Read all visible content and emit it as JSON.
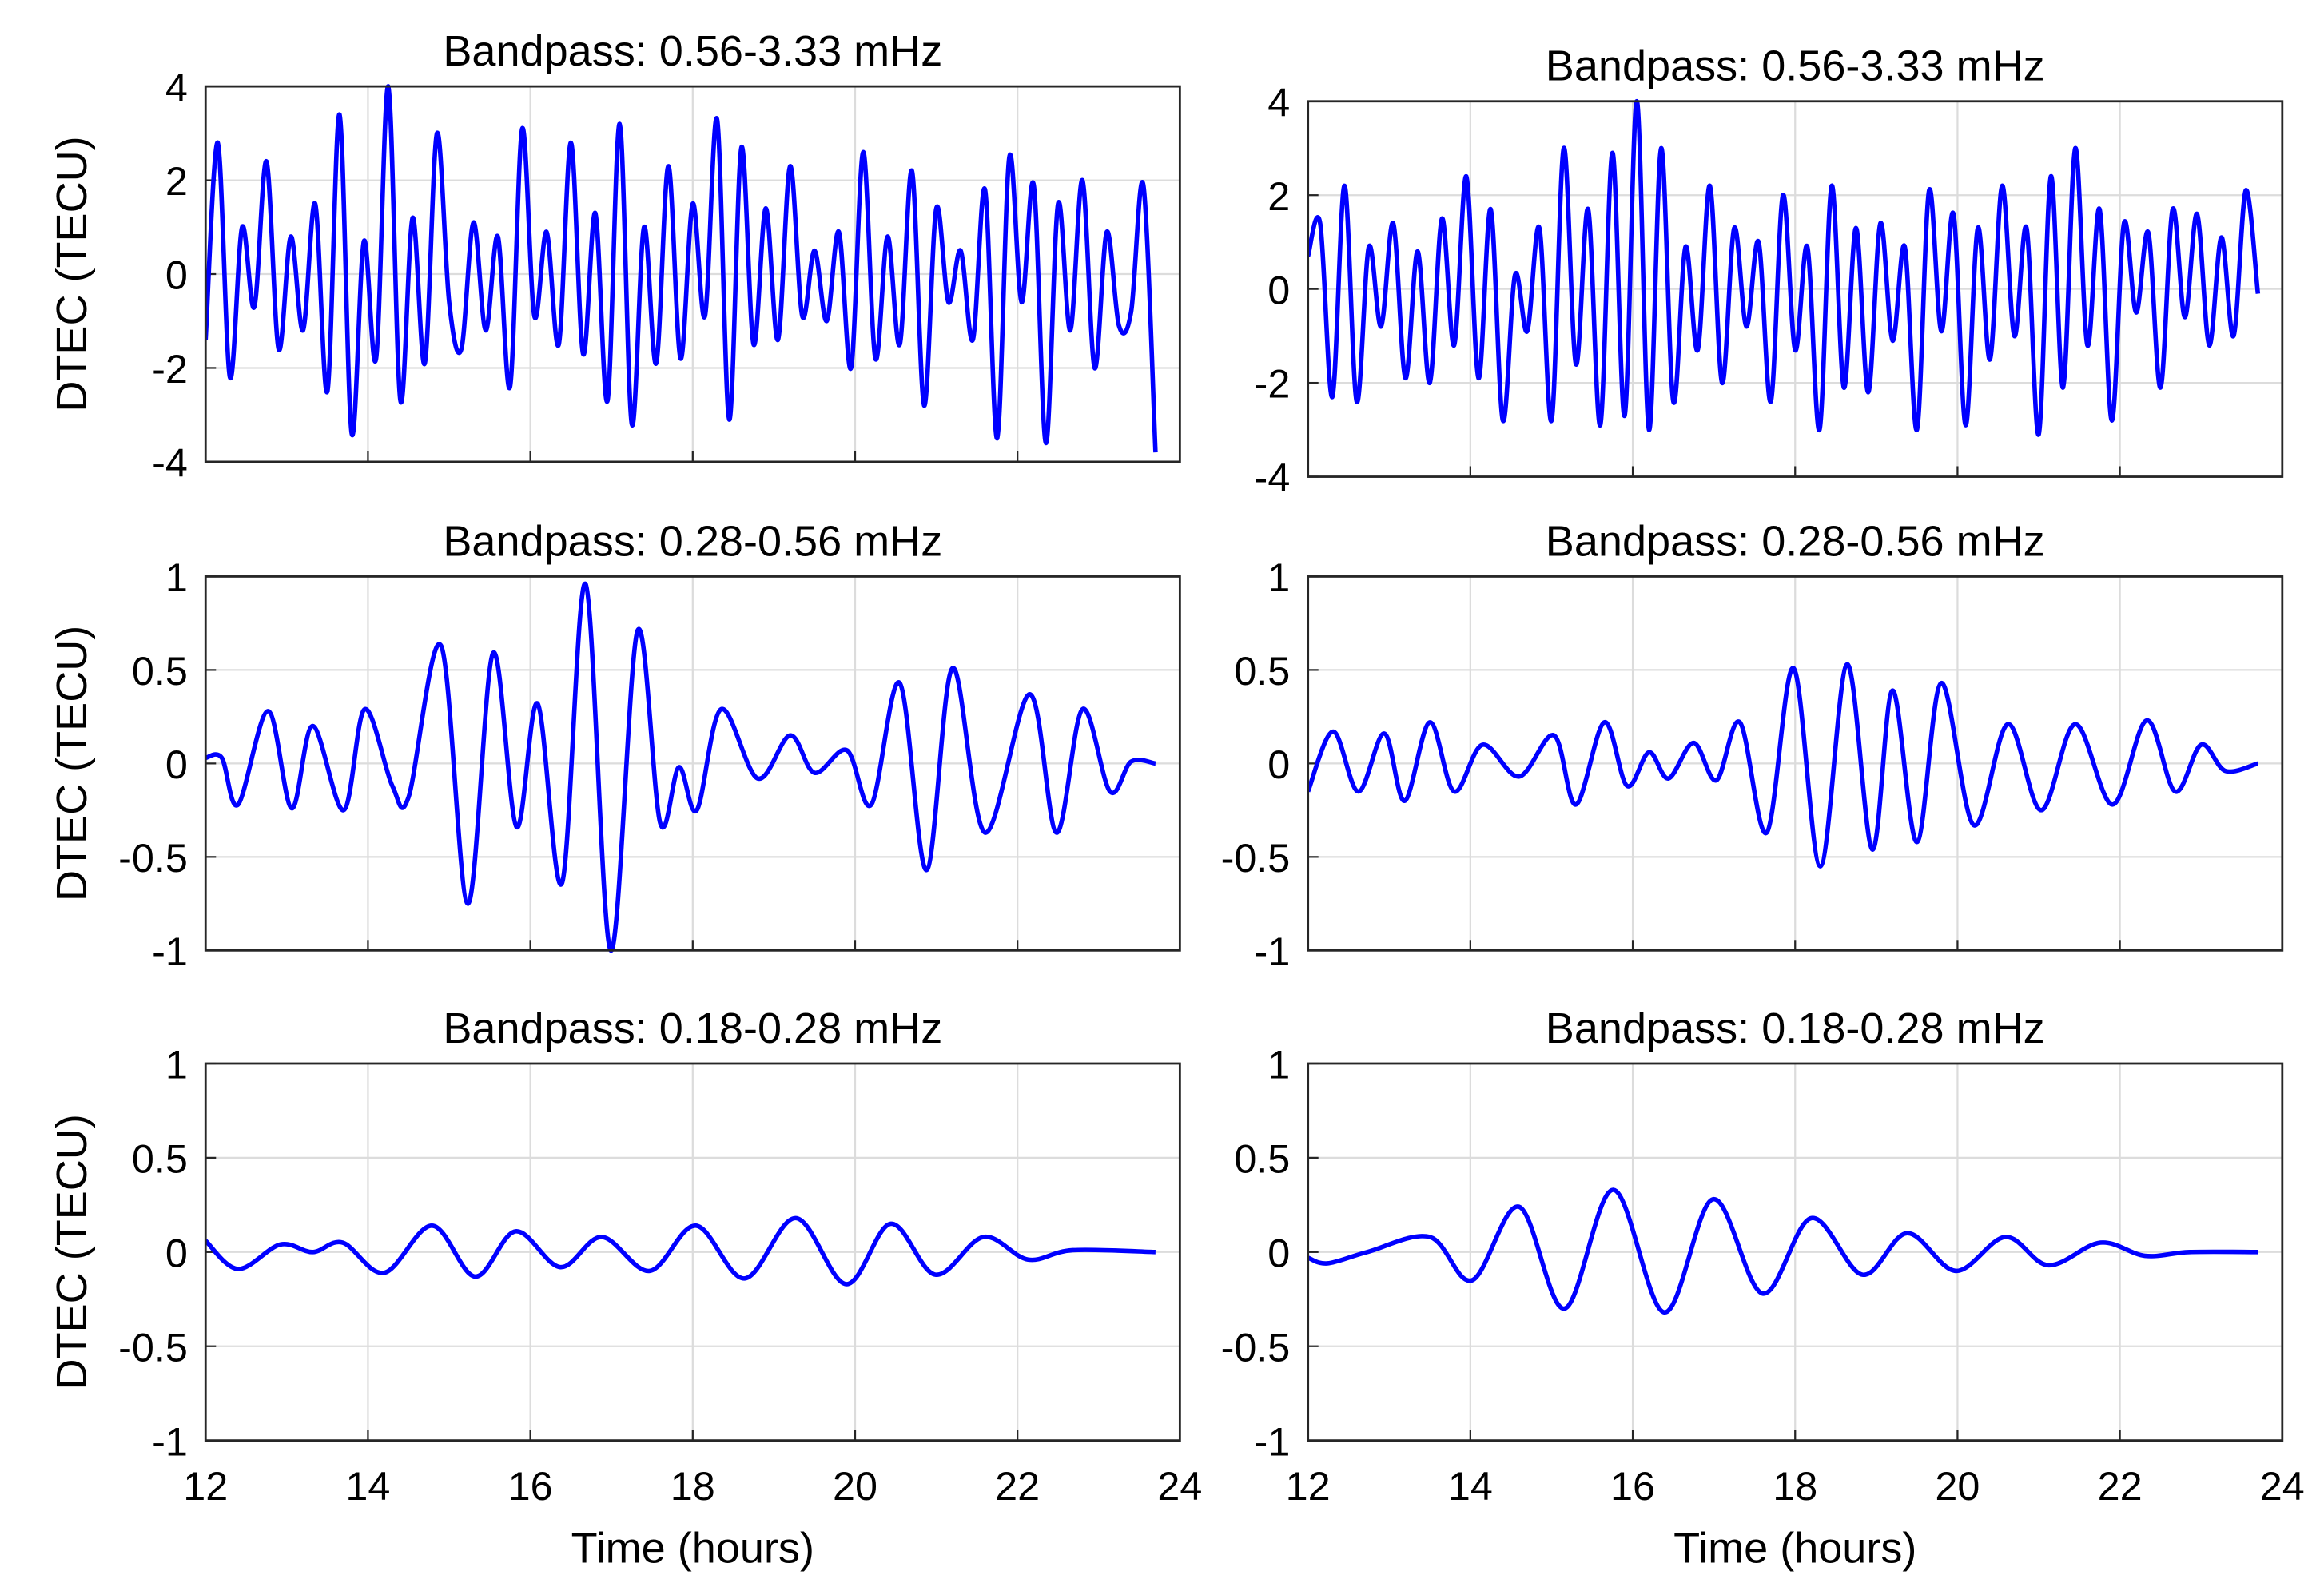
{
  "chart_data": [
    {
      "type": "line",
      "title": "Bandpass: 0.56-3.33 mHz",
      "ylabel": "DTEC (TECU)",
      "color": "#0000ff",
      "grid": true,
      "xlim": [
        12,
        24
      ],
      "xticks": [
        12,
        14,
        16,
        18,
        20,
        22,
        24
      ],
      "ylim": [
        -4,
        4
      ],
      "yticks": [
        -4,
        -2,
        0,
        2,
        4
      ],
      "x": [
        12,
        12.15,
        12.3,
        12.45,
        12.6,
        12.75,
        12.9,
        13.05,
        13.2,
        13.35,
        13.5,
        13.65,
        13.8,
        13.95,
        14.1,
        14.25,
        14.4,
        14.55,
        14.7,
        14.85,
        15,
        15.15,
        15.3,
        15.45,
        15.6,
        15.75,
        15.9,
        16.05,
        16.2,
        16.35,
        16.5,
        16.65,
        16.8,
        16.95,
        17.1,
        17.25,
        17.4,
        17.55,
        17.7,
        17.85,
        18,
        18.15,
        18.3,
        18.45,
        18.6,
        18.75,
        18.9,
        19.05,
        19.2,
        19.35,
        19.5,
        19.65,
        19.8,
        19.95,
        20.1,
        20.25,
        20.4,
        20.55,
        20.7,
        20.85,
        21,
        21.15,
        21.3,
        21.45,
        21.6,
        21.75,
        21.9,
        22.05,
        22.2,
        22.35,
        22.5,
        22.65,
        22.8,
        22.95,
        23.1,
        23.25,
        23.4,
        23.55,
        23.7
      ],
      "values": [
        -1.4,
        2.8,
        -2.2,
        1.0,
        -0.7,
        2.4,
        -1.6,
        0.8,
        -1.2,
        1.5,
        -2.5,
        3.4,
        -3.4,
        0.7,
        -1.8,
        4.0,
        -2.7,
        1.2,
        -1.9,
        3.0,
        -0.6,
        -1.6,
        1.1,
        -1.2,
        0.8,
        -2.4,
        3.1,
        -0.9,
        0.9,
        -1.5,
        2.8,
        -1.7,
        1.3,
        -2.7,
        3.2,
        -3.2,
        1.0,
        -1.9,
        2.3,
        -1.8,
        1.5,
        -0.9,
        3.3,
        -3.1,
        2.7,
        -1.5,
        1.4,
        -1.4,
        2.3,
        -0.9,
        0.5,
        -1.0,
        0.9,
        -2.0,
        2.6,
        -1.8,
        0.8,
        -1.5,
        2.2,
        -2.8,
        1.4,
        -0.6,
        0.5,
        -1.4,
        1.8,
        -3.5,
        2.5,
        -0.6,
        1.9,
        -3.6,
        1.5,
        -1.2,
        2.0,
        -2.0,
        0.9,
        -1.1,
        -0.8,
        1.9,
        -3.8
      ]
    },
    {
      "type": "line",
      "title": "Bandpass: 0.56-3.33 mHz",
      "color": "#0000ff",
      "grid": true,
      "xlim": [
        12,
        24
      ],
      "xticks": [
        12,
        14,
        16,
        18,
        20,
        22,
        24
      ],
      "ylim": [
        -4,
        4
      ],
      "yticks": [
        -4,
        -2,
        0,
        2,
        4
      ],
      "x": [
        12,
        12.15,
        12.3,
        12.45,
        12.6,
        12.75,
        12.9,
        13.05,
        13.2,
        13.35,
        13.5,
        13.65,
        13.8,
        13.95,
        14.1,
        14.25,
        14.4,
        14.55,
        14.7,
        14.85,
        15,
        15.15,
        15.3,
        15.45,
        15.6,
        15.75,
        15.9,
        16.05,
        16.2,
        16.35,
        16.5,
        16.65,
        16.8,
        16.95,
        17.1,
        17.25,
        17.4,
        17.55,
        17.7,
        17.85,
        18,
        18.15,
        18.3,
        18.45,
        18.6,
        18.75,
        18.9,
        19.05,
        19.2,
        19.35,
        19.5,
        19.65,
        19.8,
        19.95,
        20.1,
        20.25,
        20.4,
        20.55,
        20.7,
        20.85,
        21,
        21.15,
        21.3,
        21.45,
        21.6,
        21.75,
        21.9,
        22.05,
        22.2,
        22.35,
        22.5,
        22.65,
        22.8,
        22.95,
        23.1,
        23.25,
        23.4,
        23.55,
        23.7
      ],
      "values": [
        0.7,
        1.4,
        -2.3,
        2.2,
        -2.4,
        0.9,
        -0.8,
        1.4,
        -1.9,
        0.8,
        -2.0,
        1.5,
        -1.2,
        2.4,
        -1.9,
        1.7,
        -2.8,
        0.3,
        -0.9,
        1.3,
        -2.8,
        3.0,
        -1.6,
        1.7,
        -2.9,
        2.9,
        -2.7,
        4.0,
        -3.0,
        3.0,
        -2.4,
        0.9,
        -1.3,
        2.2,
        -2.0,
        1.3,
        -0.8,
        1.0,
        -2.4,
        2.0,
        -1.3,
        0.9,
        -3.0,
        2.2,
        -2.1,
        1.3,
        -2.2,
        1.4,
        -1.1,
        0.9,
        -3.0,
        2.1,
        -0.9,
        1.6,
        -2.9,
        1.3,
        -1.5,
        2.2,
        -1.0,
        1.3,
        -3.1,
        2.4,
        -2.1,
        3.0,
        -1.2,
        1.7,
        -2.8,
        1.4,
        -0.5,
        1.2,
        -2.1,
        1.7,
        -0.6,
        1.6,
        -1.2,
        1.1,
        -1.0,
        2.1,
        -0.1
      ]
    },
    {
      "type": "line",
      "title": "Bandpass: 0.28-0.56 mHz",
      "ylabel": "DTEC (TECU)",
      "color": "#0000ff",
      "grid": true,
      "xlim": [
        12,
        24
      ],
      "xticks": [
        12,
        14,
        16,
        18,
        20,
        22,
        24
      ],
      "ylim": [
        -1,
        1
      ],
      "yticks": [
        -1,
        -0.5,
        0,
        0.5,
        1
      ],
      "x": [
        12,
        12.2,
        12.4,
        12.77,
        13.06,
        13.32,
        13.7,
        13.96,
        14.3,
        14.5,
        14.9,
        15.23,
        15.54,
        15.83,
        16.09,
        16.39,
        16.68,
        16.99,
        17.32,
        17.6,
        17.83,
        18.05,
        18.35,
        18.8,
        19.2,
        19.5,
        19.9,
        20.2,
        20.55,
        20.88,
        21.2,
        21.6,
        22.15,
        22.48,
        22.8,
        23.14,
        23.4,
        23.7
      ],
      "values": [
        0.03,
        0.03,
        -0.22,
        0.28,
        -0.24,
        0.2,
        -0.25,
        0.29,
        -0.12,
        -0.18,
        0.63,
        -0.75,
        0.59,
        -0.34,
        0.32,
        -0.64,
        0.96,
        -1.0,
        0.71,
        -0.32,
        -0.02,
        -0.25,
        0.29,
        -0.08,
        0.15,
        -0.05,
        0.07,
        -0.22,
        0.43,
        -0.57,
        0.51,
        -0.37,
        0.37,
        -0.37,
        0.29,
        -0.15,
        0.01,
        0
      ]
    },
    {
      "type": "line",
      "title": "Bandpass: 0.28-0.56 mHz",
      "color": "#0000ff",
      "grid": true,
      "xlim": [
        12,
        24
      ],
      "xticks": [
        12,
        14,
        16,
        18,
        20,
        22,
        24
      ],
      "ylim": [
        -1,
        1
      ],
      "yticks": [
        -1,
        -0.5,
        0,
        0.5,
        1
      ],
      "x": [
        12,
        12.31,
        12.62,
        12.94,
        13.19,
        13.5,
        13.8,
        14.15,
        14.6,
        15.03,
        15.3,
        15.65,
        15.93,
        16.2,
        16.44,
        16.75,
        17.03,
        17.32,
        17.65,
        17.98,
        18.31,
        18.64,
        18.95,
        19.2,
        19.5,
        19.8,
        20.2,
        20.62,
        21.03,
        21.45,
        21.91,
        22.33,
        22.68,
        23,
        23.3,
        23.7
      ],
      "values": [
        -0.15,
        0.17,
        -0.15,
        0.16,
        -0.2,
        0.22,
        -0.15,
        0.1,
        -0.07,
        0.15,
        -0.22,
        0.22,
        -0.12,
        0.06,
        -0.08,
        0.11,
        -0.09,
        0.22,
        -0.37,
        0.51,
        -0.55,
        0.53,
        -0.46,
        0.39,
        -0.42,
        0.43,
        -0.33,
        0.21,
        -0.25,
        0.21,
        -0.22,
        0.23,
        -0.15,
        0.1,
        -0.04,
        0
      ]
    },
    {
      "type": "line",
      "title": "Bandpass: 0.18-0.28 mHz",
      "ylabel": "DTEC (TECU)",
      "xlabel": "Time (hours)",
      "color": "#0000ff",
      "grid": true,
      "xlim": [
        12,
        24
      ],
      "xticks": [
        12,
        14,
        16,
        18,
        20,
        22,
        24
      ],
      "ylim": [
        -1,
        1
      ],
      "yticks": [
        -1,
        -0.5,
        0,
        0.5,
        1
      ],
      "x": [
        12,
        12.4,
        12.92,
        13.32,
        13.69,
        14.2,
        14.79,
        15.32,
        15.82,
        16.37,
        16.88,
        17.47,
        18.04,
        18.64,
        19.27,
        19.89,
        20.44,
        20.99,
        21.58,
        22.13,
        22.68,
        23.7
      ],
      "values": [
        0.06,
        -0.09,
        0.04,
        0.0,
        0.05,
        -0.11,
        0.14,
        -0.13,
        0.11,
        -0.08,
        0.08,
        -0.1,
        0.14,
        -0.14,
        0.18,
        -0.17,
        0.15,
        -0.12,
        0.08,
        -0.04,
        0.01,
        0
      ]
    },
    {
      "type": "line",
      "title": "Bandpass: 0.18-0.28 mHz",
      "xlabel": "Time (hours)",
      "color": "#0000ff",
      "grid": true,
      "xlim": [
        12,
        24
      ],
      "xticks": [
        12,
        14,
        16,
        18,
        20,
        22,
        24
      ],
      "ylim": [
        -1,
        1
      ],
      "yticks": [
        -1,
        -0.5,
        0,
        0.5,
        1
      ],
      "x": [
        12,
        12.24,
        12.73,
        13.5,
        14.02,
        14.6,
        15.16,
        15.76,
        16.39,
        16.99,
        17.6,
        18.2,
        18.83,
        19.38,
        19.98,
        20.59,
        21.12,
        21.76,
        22.31,
        22.86,
        23.7
      ],
      "values": [
        -0.03,
        -0.06,
        0.0,
        0.08,
        -0.15,
        0.24,
        -0.3,
        0.33,
        -0.32,
        0.28,
        -0.22,
        0.18,
        -0.12,
        0.1,
        -0.1,
        0.08,
        -0.07,
        0.05,
        -0.02,
        0.0,
        0
      ]
    }
  ]
}
